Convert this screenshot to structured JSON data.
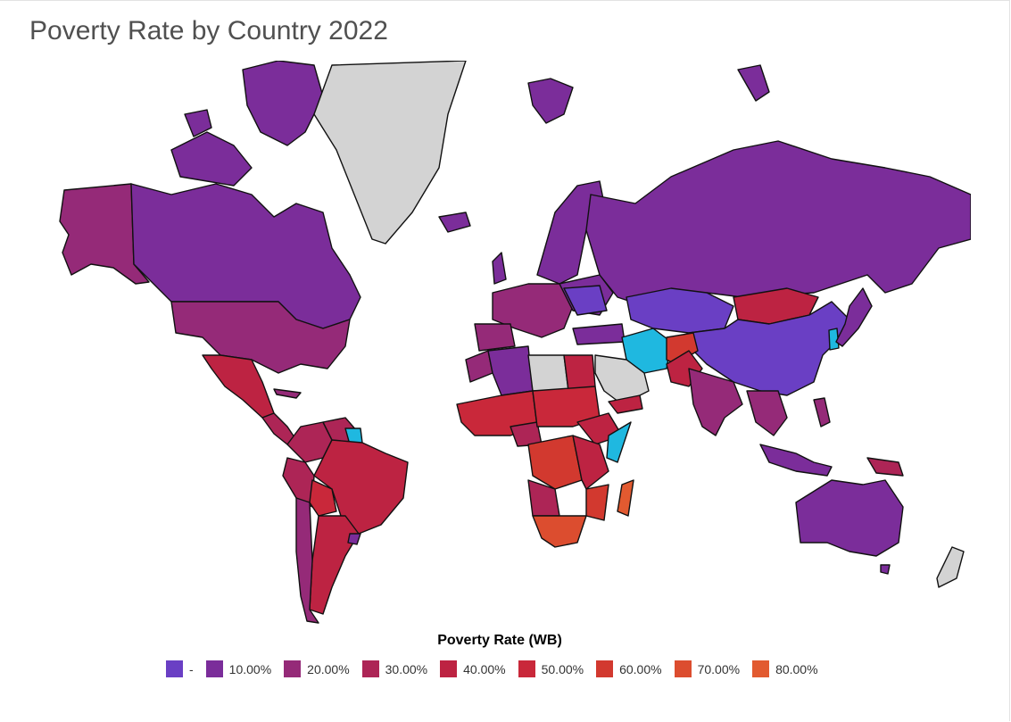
{
  "title": "Poverty Rate by Country 2022",
  "legend": {
    "title": "Poverty Rate (WB)",
    "items": [
      {
        "label": "-",
        "color": "#6a3fc4"
      },
      {
        "label": "10.00%",
        "color": "#7b2d9a"
      },
      {
        "label": "20.00%",
        "color": "#952a78"
      },
      {
        "label": "30.00%",
        "color": "#ad2556"
      },
      {
        "label": "40.00%",
        "color": "#bd2342"
      },
      {
        "label": "50.00%",
        "color": "#c9283a"
      },
      {
        "label": "60.00%",
        "color": "#d2392f"
      },
      {
        "label": "70.00%",
        "color": "#dc4d2f"
      },
      {
        "label": "80.00%",
        "color": "#e25a30"
      }
    ]
  },
  "colors": {
    "no_data": "#d3d3d3",
    "highlight": "#1fb8e0"
  }
}
